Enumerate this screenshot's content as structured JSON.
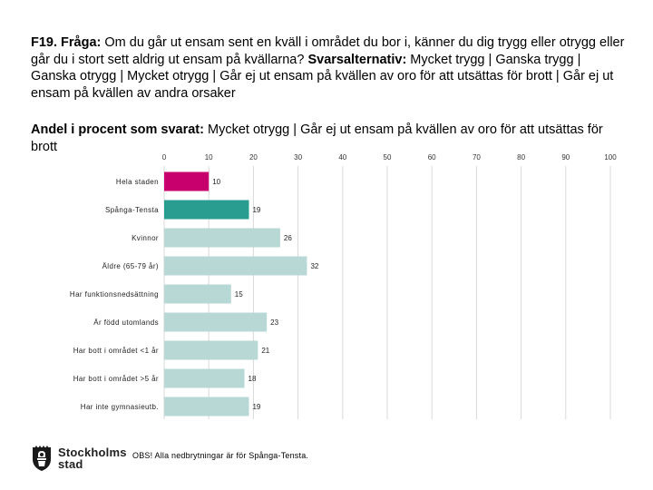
{
  "question": {
    "label": "F19. Fråga:",
    "text": " Om du går ut ensam sent en kväll i området du bor i, känner du dig trygg eller otrygg eller går du i stort sett aldrig ut ensam på kvällarna? ",
    "alt_label": "Svarsalternativ:",
    "alt_text": " Mycket trygg | Ganska trygg | Ganska otrygg | Mycket otrygg | Går ej ut ensam på kvällen av oro för att utsättas för brott | Går ej ut ensam på kvällen av andra orsaker"
  },
  "subheading": {
    "label": "Andel i procent som svarat:",
    "text": " Mycket otrygg | Går ej ut ensam på kvällen av oro för att utsättas för brott"
  },
  "chart_data": {
    "type": "bar",
    "orientation": "horizontal",
    "title": "Andel i procent som svarat: Mycket otrygg | Går ej ut ensam på kvällen av oro för att utsättas för brott",
    "xlim": [
      0,
      100
    ],
    "xticks": [
      0,
      10,
      20,
      30,
      40,
      50,
      60,
      70,
      80,
      90,
      100
    ],
    "grid": true,
    "categories": [
      "Hela staden",
      "Spånga-Tensta",
      "Kvinnor",
      "Äldre (65-79 år)",
      "Har funktionsnedsättning",
      "Är född utomlands",
      "Har bott i området <1 år",
      "Har bott i området >5 år",
      "Har inte gymnasieutb."
    ],
    "values": [
      10,
      19,
      26,
      32,
      15,
      23,
      21,
      18,
      19
    ],
    "colors": [
      "#c8006e",
      "#2a9d91",
      "#b8d8d6",
      "#b8d8d6",
      "#b8d8d6",
      "#b8d8d6",
      "#b8d8d6",
      "#b8d8d6",
      "#b8d8d6"
    ]
  },
  "logo": {
    "name_line1": "Stockholms",
    "name_line2": "stad",
    "icon": "stockholm-crest-icon"
  },
  "footnote": "OBS! Alla nedbrytningar är för Spånga-Tensta."
}
